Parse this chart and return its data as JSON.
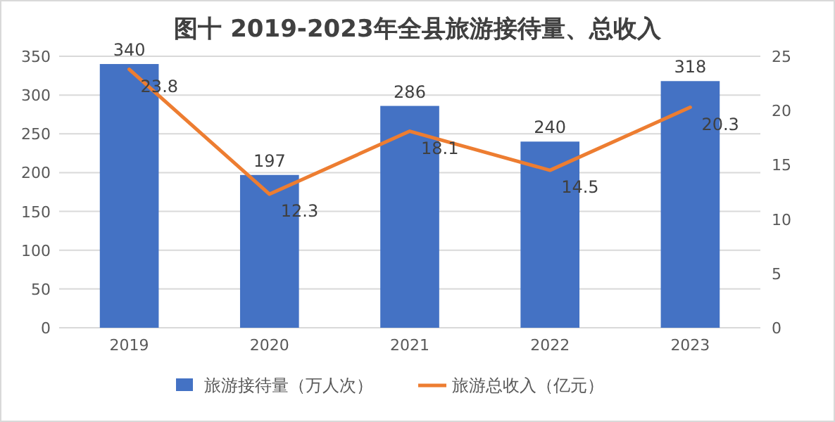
{
  "chart_data": {
    "type": "bar",
    "title": "图十 2019-2023年全县旅游接待量、总收入",
    "categories": [
      "2019",
      "2020",
      "2021",
      "2022",
      "2023"
    ],
    "series": [
      {
        "name": "旅游接待量（万人次）",
        "color": "#4472c4",
        "values": [
          340,
          197,
          286,
          240,
          318
        ]
      },
      {
        "name": "旅游总收入（亿元）",
        "type": "line",
        "axis": "y2",
        "color": "#ed7d31",
        "values": [
          23.8,
          12.3,
          18.1,
          14.5,
          20.3
        ]
      }
    ],
    "ylim": [
      0,
      350
    ],
    "yticks": [
      0,
      50,
      100,
      150,
      200,
      250,
      300,
      350
    ],
    "y2lim": [
      0,
      25
    ],
    "y2ticks": [
      0,
      5,
      10,
      15,
      20,
      25
    ],
    "grid": "y",
    "legend": "bottom",
    "data_labels": true
  }
}
